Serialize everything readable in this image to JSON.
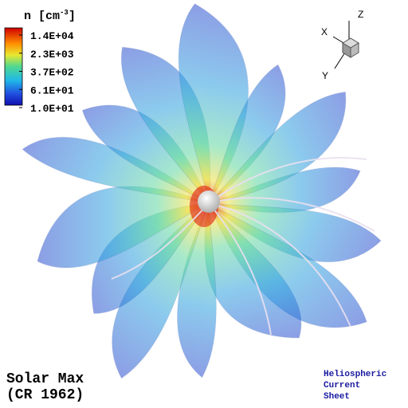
{
  "colorbar": {
    "title": "n [cm",
    "title_exponent": "-3",
    "title_close": "]",
    "ticks": [
      "1.4E+04",
      "2.3E+03",
      "3.7E+02",
      "6.1E+01",
      "1.0E+01"
    ]
  },
  "axes_triad": {
    "x": "X",
    "y": "Y",
    "z": "Z"
  },
  "caption": {
    "line1": "Solar Max",
    "line2": "(CR 1962)"
  },
  "note": [
    "Heliospheric",
    "Current",
    "Sheet"
  ]
}
